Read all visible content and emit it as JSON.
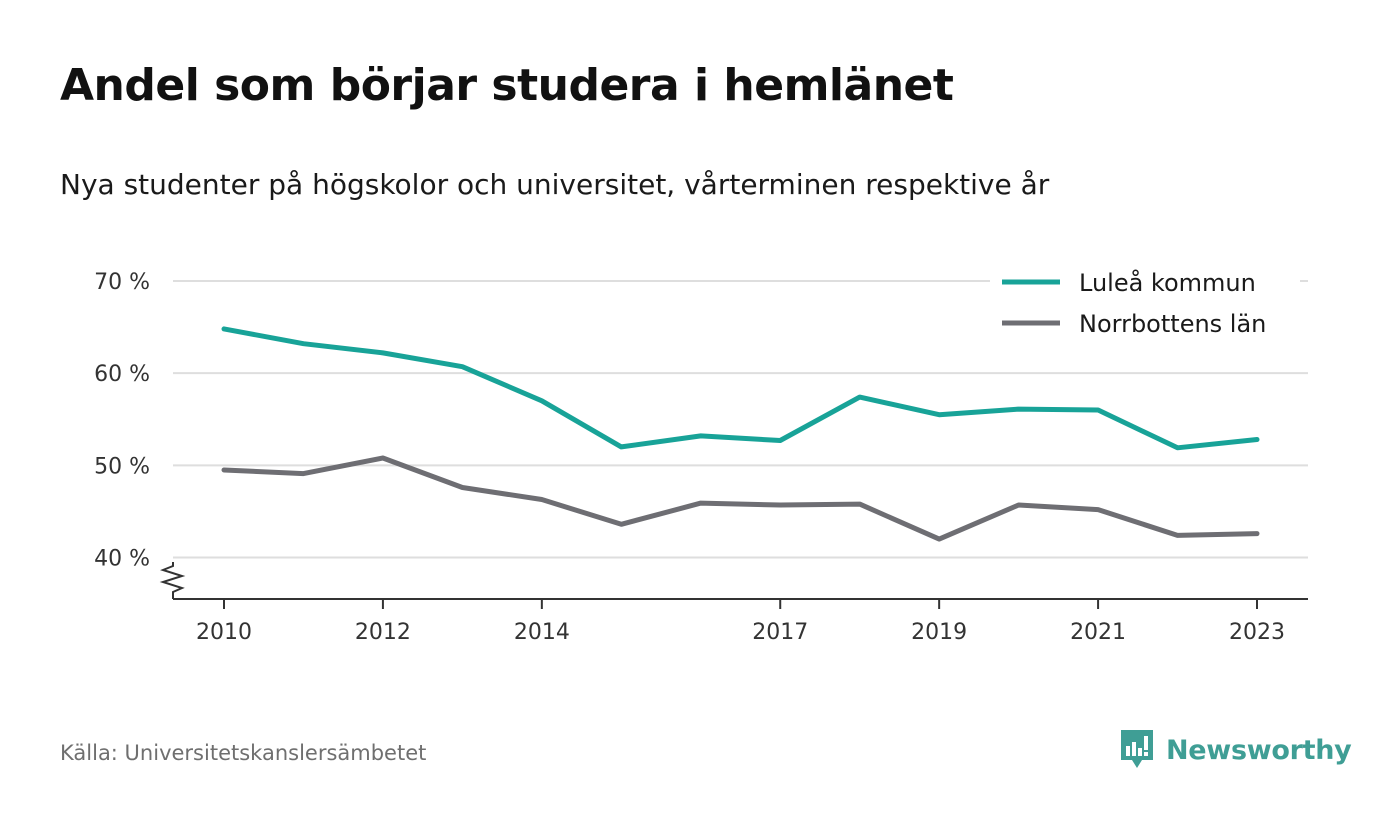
{
  "header": {
    "title": "Andel som börjar studera i hemlänet",
    "subtitle": "Nya studenter på högskolor och universitet, vårterminen respektive år"
  },
  "footer": {
    "source": "Källa: Universitetskanslersämbetet",
    "brand": "Newsworthy"
  },
  "icons": {
    "brand_logo": "newsworthy-logo-icon",
    "axis_break": "axis-break-icon"
  },
  "colors": {
    "lulea": "#18a398",
    "norrbotten": "#6e6e73",
    "brand": "#3f9e95",
    "grid": "#dedede"
  },
  "chart_data": {
    "type": "line",
    "x": [
      2010,
      2011,
      2012,
      2013,
      2014,
      2015,
      2016,
      2017,
      2018,
      2019,
      2020,
      2021,
      2022,
      2023
    ],
    "x_ticks": [
      "2010",
      "2012",
      "2014",
      "2017",
      "2019",
      "2021",
      "2023"
    ],
    "y_ticks": [
      "40 %",
      "50 %",
      "60 %",
      "70 %"
    ],
    "y_tick_values": [
      40,
      50,
      60,
      70
    ],
    "ylim": [
      35.5,
      70
    ],
    "y_axis_break": true,
    "grid": true,
    "legend_position": "top-right",
    "series": [
      {
        "name": "Luleå kommun",
        "color": "#18a398",
        "values": [
          64.8,
          63.2,
          62.2,
          60.7,
          57.0,
          52.0,
          53.2,
          52.7,
          57.4,
          55.5,
          56.1,
          56.0,
          51.9,
          52.8
        ]
      },
      {
        "name": "Norrbottens län",
        "color": "#6e6e73",
        "values": [
          49.5,
          49.1,
          50.8,
          47.6,
          46.3,
          43.6,
          45.9,
          45.7,
          45.8,
          42.0,
          45.7,
          45.2,
          42.4,
          42.6
        ]
      }
    ]
  }
}
